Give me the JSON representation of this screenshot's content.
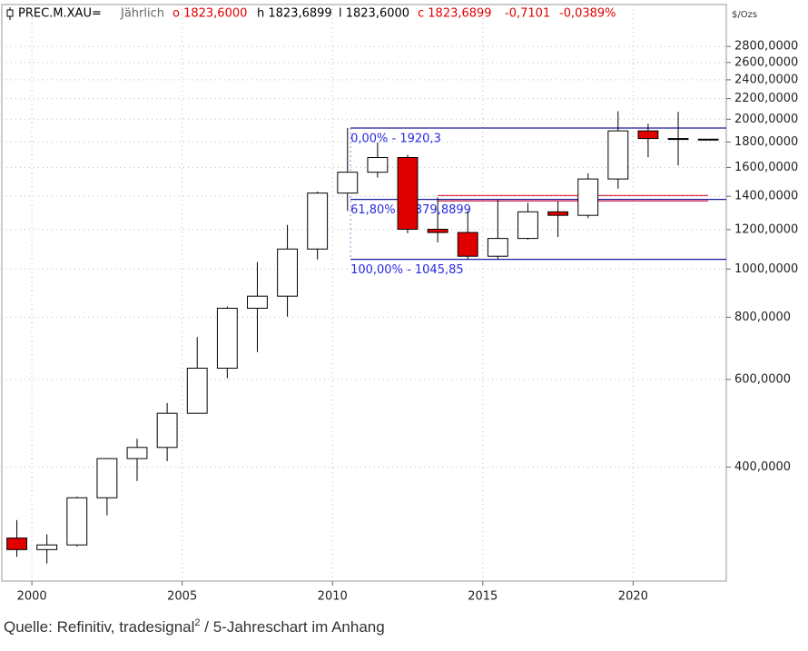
{
  "chart_data": {
    "type": "candlestick",
    "header": [
      {
        "text": "PREC.M.XAU=",
        "color": "#000000"
      },
      {
        "text": "Jährlich",
        "color": "#666666"
      },
      {
        "text": "o 1823,6000",
        "color": "#e00000"
      },
      {
        "text": "h 1823,6899",
        "color": "#000000"
      },
      {
        "text": "l 1823,6000",
        "color": "#000000"
      },
      {
        "text": "c 1823,6899",
        "color": "#e00000"
      },
      {
        "text": "-0,7101",
        "color": "#e00000"
      },
      {
        "text": "-0,0389%",
        "color": "#e00000"
      }
    ],
    "unit_label": "$/Ozs",
    "caption": [
      "Quelle: Refinitiv, tradesignal",
      "2",
      " / 5-Jahreschart im Anhang"
    ],
    "x": [
      2000,
      2001,
      2002,
      2003,
      2004,
      2005,
      2006,
      2007,
      2008,
      2009,
      2010,
      2011,
      2012,
      2013,
      2014,
      2015,
      2016,
      2017,
      2018,
      2019,
      2020,
      2021,
      2022,
      2023
    ],
    "open": [
      288,
      273,
      279,
      347,
      416,
      438,
      513,
      632,
      834,
      882,
      1097,
      1421,
      1565,
      1675,
      1202,
      1184,
      1061,
      1152,
      1303,
      1282,
      1517,
      1895,
      1829,
      1823.6
    ],
    "high": [
      313,
      293,
      349,
      417,
      456,
      538,
      730,
      841,
      1033,
      1226,
      1431,
      1921,
      1796,
      1696,
      1392,
      1307,
      1375,
      1358,
      1366,
      1557,
      2075,
      1959,
      2070,
      1823.6899
    ],
    "low": [
      264,
      256,
      277,
      320,
      375,
      411,
      524,
      603,
      681,
      802,
      1045,
      1308,
      1527,
      1180,
      1131,
      1046,
      1046,
      1146,
      1160,
      1266,
      1451,
      1677,
      1615,
      1823.6
    ],
    "close": [
      273,
      279,
      347,
      416,
      438,
      513,
      632,
      834,
      882,
      1097,
      1421,
      1565,
      1675,
      1202,
      1184,
      1061,
      1152,
      1303,
      1282,
      1517,
      1895,
      1829,
      1824,
      1823.6899
    ],
    "up_color": "#ffffff",
    "down_color": "#e00000",
    "fib_levels": [
      {
        "value": 1920.3,
        "label": "0,00% - 1920,3"
      },
      {
        "value": 1379.8899,
        "label": "61,80% - 1379,8899"
      },
      {
        "value": 1045.85,
        "label": "100,00% - 1045,85"
      }
    ],
    "fib_start": 2010.6,
    "fib_color": "#1a1aa0",
    "fib_label_color": "#2a2ae0",
    "support_lines": [
      1405,
      1370
    ],
    "support_range": [
      2013.5,
      2022.5
    ],
    "support_color": "#e03050",
    "log_scale": true,
    "grid": true,
    "xlim": [
      1999.0,
      2023.1
    ],
    "xticks": [
      2000,
      2005,
      2010,
      2015,
      2020
    ],
    "ylim": [
      236,
      3400
    ],
    "yticks": [
      {
        "value": 400,
        "label": "400,0000"
      },
      {
        "value": 600,
        "label": "600,0000"
      },
      {
        "value": 800,
        "label": "800,0000"
      },
      {
        "value": 1000,
        "label": "1000,0000"
      },
      {
        "value": 1200,
        "label": "1200,0000"
      },
      {
        "value": 1400,
        "label": "1400,0000"
      },
      {
        "value": 1600,
        "label": "1600,0000"
      },
      {
        "value": 1800,
        "label": "1800,0000"
      },
      {
        "value": 2000,
        "label": "2000,0000"
      },
      {
        "value": 2200,
        "label": "2200,0000"
      },
      {
        "value": 2400,
        "label": "2400,0000"
      },
      {
        "value": 2600,
        "label": "2600,0000"
      },
      {
        "value": 2800,
        "label": "2800,0000"
      }
    ]
  }
}
